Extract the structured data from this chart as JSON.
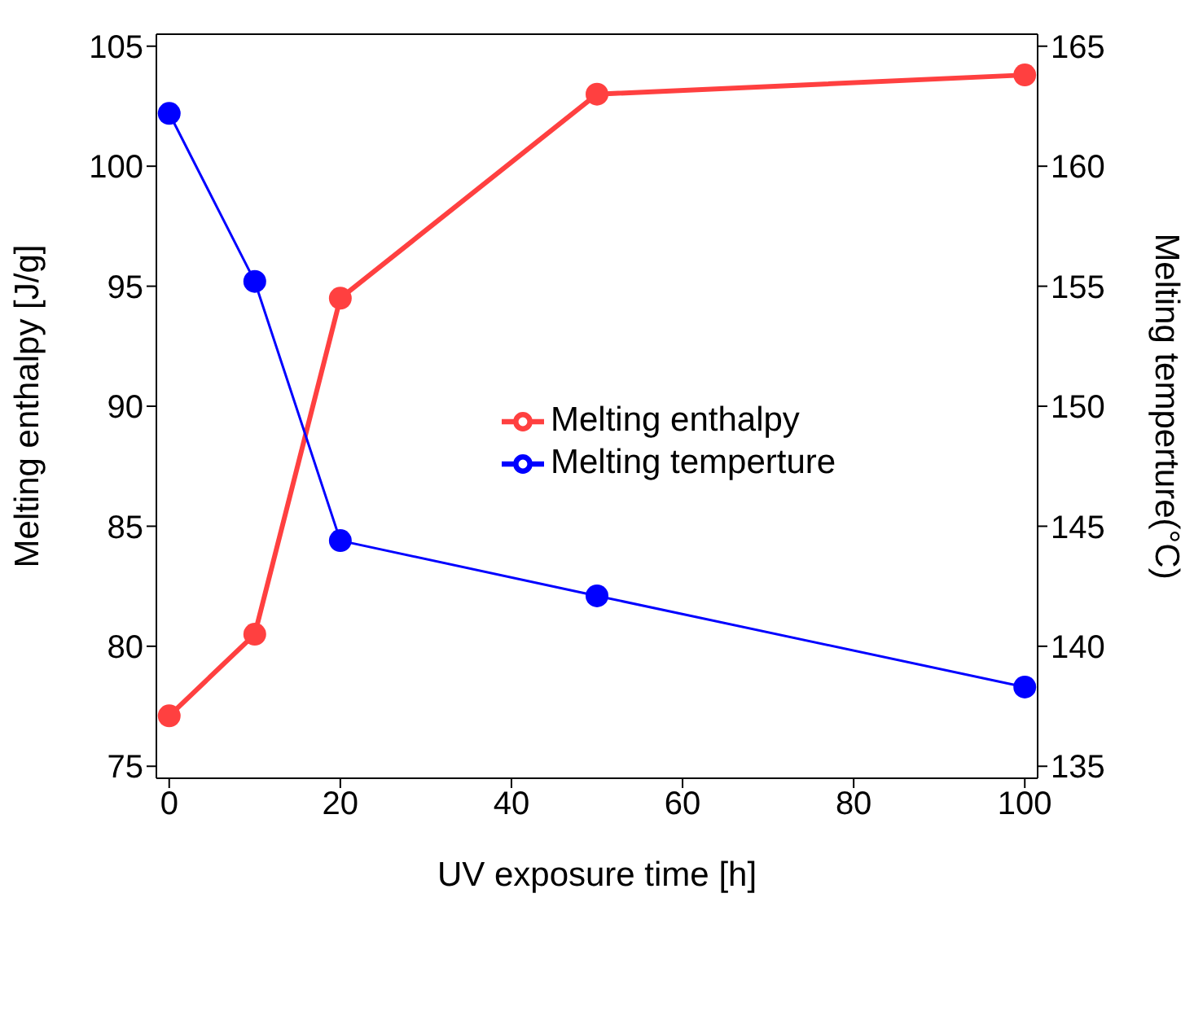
{
  "chart_data": {
    "type": "line",
    "xlabel": "UV exposure time [h]",
    "ylabel": "Melting enthalpy [J/g]",
    "y2label": "Melting temperture(°C)",
    "x": [
      0,
      10,
      20,
      50,
      100
    ],
    "series": [
      {
        "name": "Melting enthalpy",
        "color": "#ff4040",
        "values": [
          77.1,
          80.5,
          94.5,
          103.0,
          103.8
        ]
      },
      {
        "name": "Melting temperture",
        "color": "#0000ff",
        "axis": "y2",
        "values": [
          162.2,
          155.2,
          144.4,
          142.1,
          138.3
        ]
      }
    ],
    "xlim": [
      -1.5,
      101.5
    ],
    "xticks": [
      0,
      20,
      40,
      60,
      80,
      100
    ],
    "ylim": [
      74.5,
      105.5
    ],
    "yticks": [
      75,
      80,
      85,
      90,
      95,
      100,
      105
    ],
    "y2lim": [
      134.5,
      165.5
    ],
    "y2ticks": [
      135,
      140,
      145,
      150,
      155,
      160,
      165
    ],
    "grid": false,
    "legend": "right",
    "marker": "circle",
    "line_style": "solid"
  }
}
